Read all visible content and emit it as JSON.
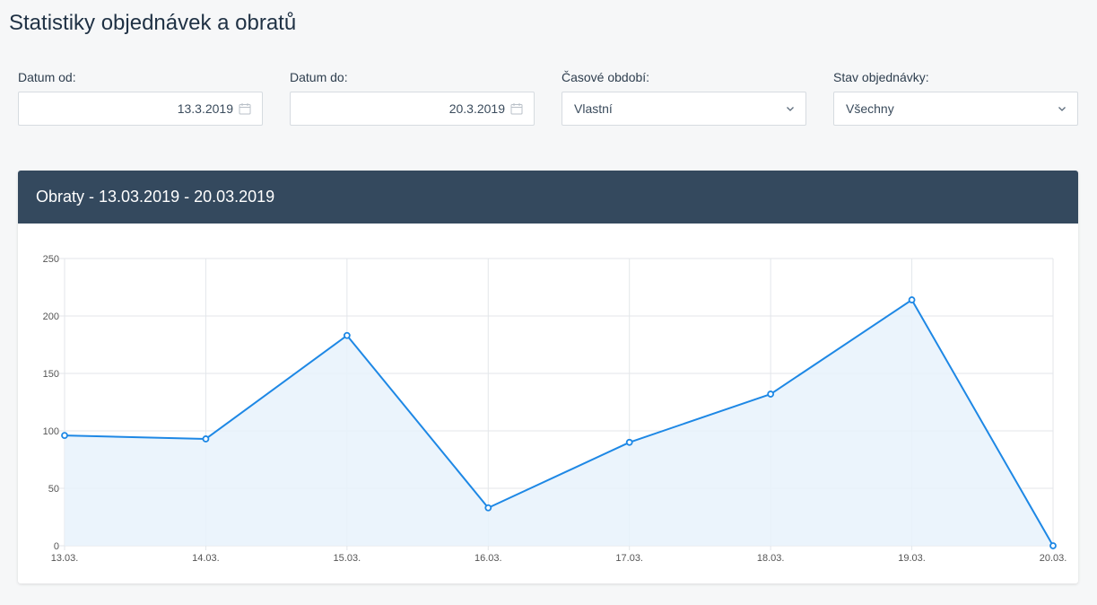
{
  "page": {
    "title": "Statistiky objednávek a obratů"
  },
  "filters": {
    "date_from": {
      "label": "Datum od:",
      "value": "13.3.2019"
    },
    "date_to": {
      "label": "Datum do:",
      "value": "20.3.2019"
    },
    "period": {
      "label": "Časové období:",
      "value": "Vlastní"
    },
    "status": {
      "label": "Stav objednávky:",
      "value": "Všechny"
    }
  },
  "card": {
    "title": "Obraty - 13.03.2019 - 20.03.2019"
  },
  "icons": {
    "date": "calendar-icon",
    "select": "chevron-down-icon"
  },
  "colors": {
    "header_bg": "#34495e",
    "line": "#1e88e5",
    "fill": "#e8f2fc",
    "grid": "#e3e6ea"
  },
  "chart_data": {
    "type": "area",
    "categories": [
      "13.03.",
      "14.03.",
      "15.03.",
      "16.03.",
      "17.03.",
      "18.03.",
      "19.03.",
      "20.03."
    ],
    "series": [
      {
        "values": [
          96,
          93,
          183,
          33,
          90,
          132,
          214,
          0
        ]
      }
    ],
    "y_ticks": [
      0,
      50,
      100,
      150,
      200,
      250
    ],
    "ylim": [
      0,
      250
    ],
    "grid": true
  }
}
